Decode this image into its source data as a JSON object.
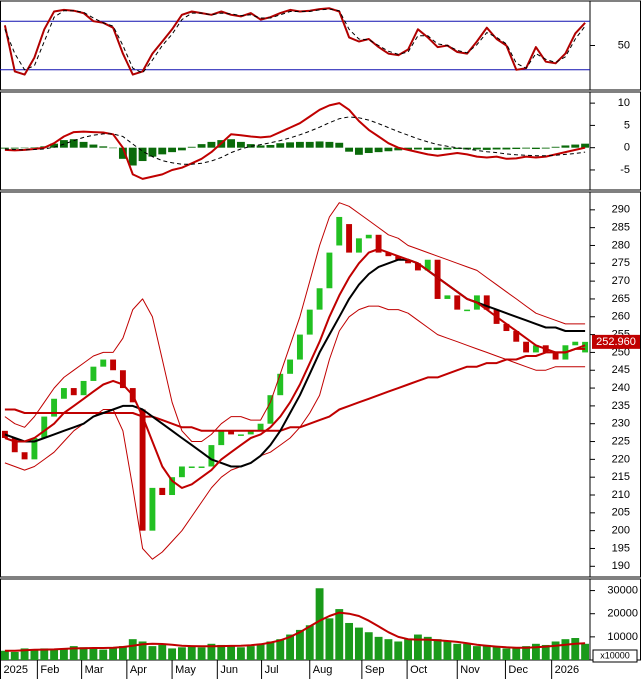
{
  "chart_data": [
    {
      "type": "line",
      "xlim": [
        -0.5,
        59.5
      ],
      "ylim": [
        -5,
        105
      ],
      "yticks": [
        50
      ],
      "levels": [
        20,
        80
      ],
      "level_color": "#1010b0",
      "series": [
        {
          "color": "#b00000",
          "weight": "thick",
          "values": [
            75,
            18,
            14,
            35,
            70,
            92,
            94,
            93,
            90,
            80,
            78,
            72,
            40,
            14,
            18,
            40,
            55,
            70,
            88,
            92,
            90,
            88,
            92,
            88,
            86,
            90,
            82,
            85,
            90,
            94,
            92,
            93,
            95,
            96,
            92,
            60,
            55,
            58,
            48,
            40,
            38,
            45,
            70,
            60,
            48,
            50,
            42,
            40,
            55,
            72,
            58,
            50,
            20,
            22,
            48,
            30,
            28,
            40,
            65,
            78
          ]
        },
        {
          "color": "#000000",
          "dashed": true,
          "weight": "thin",
          "values": [
            70,
            40,
            20,
            25,
            55,
            85,
            93,
            93,
            91,
            84,
            78,
            74,
            50,
            22,
            16,
            32,
            50,
            64,
            82,
            90,
            90,
            88,
            90,
            89,
            87,
            88,
            84,
            84,
            88,
            92,
            92,
            92,
            94,
            95,
            93,
            70,
            58,
            57,
            50,
            43,
            39,
            42,
            62,
            62,
            52,
            50,
            44,
            41,
            51,
            66,
            60,
            52,
            28,
            22,
            40,
            33,
            29,
            36,
            58,
            74
          ]
        }
      ]
    },
    {
      "type": "bar",
      "xlim": [
        -0.5,
        59.5
      ],
      "ylim": [
        -9.5,
        12.5
      ],
      "yticks": [
        10,
        5,
        0,
        -5
      ],
      "bars": {
        "color": "#0a6a0a",
        "values": [
          -0.2,
          -0.2,
          0,
          0.1,
          0.3,
          0.9,
          1.7,
          1.9,
          1.3,
          0.7,
          0.3,
          -0.1,
          -2.5,
          -4,
          -3,
          -2,
          -1.5,
          -1,
          -0.6,
          0.2,
          0.8,
          1.3,
          1.7,
          1.9,
          1.3,
          0.8,
          0.5,
          0.6,
          1,
          1.2,
          1.3,
          1.3,
          1.4,
          1.3,
          1.1,
          -0.9,
          -1.6,
          -1.2,
          -1,
          -0.8,
          -0.6,
          -0.5,
          -0.4,
          -0.5,
          -0.5,
          -0.4,
          -0.3,
          -0.4,
          -0.4,
          -0.5,
          -0.4,
          -0.4,
          -0.3,
          -0.2,
          -0.3,
          -0.2,
          0.2,
          0.5,
          0.7,
          0.9
        ]
      },
      "series": [
        {
          "color": "#c00000",
          "weight": "thick",
          "values": [
            -0.5,
            -0.6,
            -0.5,
            -0.3,
            0,
            1,
            2.5,
            3.5,
            3.6,
            3.5,
            3.4,
            3,
            0,
            -6,
            -7,
            -6.5,
            -6,
            -5,
            -4.5,
            -3.5,
            -2.5,
            -1,
            1,
            3,
            2.8,
            2.5,
            2.3,
            2.5,
            3.5,
            4.5,
            5.5,
            7,
            8.5,
            9.5,
            10,
            8.5,
            6,
            4,
            2.5,
            1,
            0,
            -0.5,
            -1,
            -1.5,
            -1.8,
            -1.5,
            -1.2,
            -1.5,
            -2,
            -2.2,
            -2,
            -2.5,
            -2.4,
            -2,
            -2.2,
            -2,
            -1.5,
            -1,
            -0.5,
            0
          ]
        },
        {
          "color": "#000000",
          "dashed": true,
          "weight": "thin",
          "values": [
            -0.3,
            -0.4,
            -0.5,
            -0.4,
            -0.3,
            0.1,
            0.8,
            1.6,
            2.3,
            2.8,
            3.1,
            3.1,
            2.5,
            0.8,
            -0.8,
            -2,
            -2.9,
            -3.4,
            -3.7,
            -3.7,
            -3.5,
            -3,
            -2.2,
            -1.1,
            -0.3,
            0.3,
            0.7,
            1.1,
            1.6,
            2.2,
            2.9,
            3.7,
            4.6,
            5.6,
            6.5,
            6.9,
            6.7,
            6.2,
            5.4,
            4.5,
            3.6,
            2.8,
            2,
            1.3,
            0.7,
            0.3,
            0,
            -0.3,
            -0.6,
            -0.9,
            -1.1,
            -1.4,
            -1.6,
            -1.7,
            -1.8,
            -1.8,
            -1.7,
            -1.5,
            -1.3,
            -1
          ]
        }
      ]
    },
    {
      "type": "candlestick",
      "xlim": [
        -0.5,
        59.5
      ],
      "ylim": [
        187,
        295
      ],
      "yticks": [
        190,
        195,
        200,
        205,
        210,
        215,
        220,
        225,
        230,
        235,
        240,
        245,
        250,
        255,
        260,
        265,
        270,
        275,
        280,
        285,
        290
      ],
      "up_color": "#22c022",
      "down_color": "#c00000",
      "open": [
        228,
        226,
        222,
        220,
        226,
        232,
        237,
        240,
        238,
        242,
        246,
        248,
        245,
        240,
        234,
        200,
        212,
        210,
        215,
        218,
        218,
        218,
        224,
        228,
        227,
        227,
        228,
        230,
        238,
        244,
        248,
        255,
        262,
        268,
        280,
        286,
        278,
        282,
        283,
        278,
        277,
        276,
        275,
        273,
        276,
        265,
        266,
        262,
        262,
        266,
        262,
        258,
        256,
        253,
        250,
        252,
        250,
        248,
        252,
        250
      ],
      "close": [
        226,
        222,
        220,
        226,
        232,
        237,
        240,
        238,
        242,
        246,
        248,
        245,
        240,
        236,
        200,
        212,
        210,
        215,
        218,
        218,
        218,
        224,
        228,
        227,
        227,
        228,
        230,
        238,
        244,
        248,
        255,
        262,
        268,
        278,
        288,
        278,
        282,
        283,
        278,
        277,
        276,
        275,
        273,
        276,
        265,
        266,
        262,
        262,
        266,
        262,
        258,
        256,
        253,
        250,
        252,
        250,
        248,
        252,
        253,
        252.96
      ],
      "last_label": "252.960",
      "last_color": "#c00000",
      "series": [
        {
          "color": "#c00000",
          "weight": "thin",
          "values": [
            232,
            230,
            229,
            232,
            236,
            240,
            243,
            245,
            247,
            249,
            250,
            250,
            254,
            262,
            265,
            260,
            248,
            236,
            228,
            225,
            225,
            227,
            230,
            232,
            232,
            231,
            231,
            236,
            244,
            252,
            260,
            270,
            280,
            288,
            292,
            291,
            289,
            287,
            285,
            283,
            282,
            280,
            279,
            278,
            277,
            276,
            275,
            274,
            273,
            271,
            269,
            267,
            265,
            263,
            261,
            260,
            259,
            258,
            258,
            258
          ]
        },
        {
          "color": "#c00000",
          "weight": "thin",
          "values": [
            219,
            218,
            217,
            218,
            220,
            222,
            225,
            228,
            230,
            232,
            234,
            234,
            228,
            212,
            195,
            192,
            194,
            197,
            200,
            204,
            208,
            212,
            215,
            217,
            218,
            219,
            221,
            222,
            224,
            226,
            229,
            233,
            238,
            248,
            256,
            260,
            262,
            263,
            263,
            262,
            262,
            261,
            259,
            257,
            255,
            254,
            253,
            252,
            251,
            250,
            249,
            248,
            247,
            246,
            245,
            245,
            246,
            246,
            246,
            246
          ]
        },
        {
          "color": "#c00000",
          "weight": "thick",
          "values": [
            234,
            234,
            233,
            233,
            233,
            233,
            233,
            233,
            233,
            233,
            233,
            233,
            233,
            233,
            232,
            232,
            231,
            230,
            229,
            229,
            228,
            228,
            228,
            228,
            228,
            228,
            228,
            228,
            228,
            229,
            229,
            230,
            231,
            232,
            234,
            235,
            236,
            237,
            238,
            239,
            240,
            241,
            242,
            243,
            243,
            244,
            245,
            246,
            246,
            247,
            247,
            248,
            248,
            249,
            249,
            250,
            250,
            250,
            251,
            251
          ]
        },
        {
          "color": "#000000",
          "weight": "thick",
          "values": [
            227,
            226,
            225,
            225,
            226,
            227,
            228,
            229,
            230,
            232,
            233,
            234,
            235,
            235,
            234,
            232,
            230,
            228,
            226,
            224,
            222,
            220,
            219,
            218,
            218,
            219,
            221,
            224,
            228,
            233,
            238,
            244,
            250,
            255,
            260,
            265,
            269,
            272,
            274,
            275,
            276,
            276,
            275,
            273,
            271,
            269,
            267,
            265,
            264,
            263,
            262,
            261,
            260,
            259,
            258,
            257,
            257,
            256,
            256,
            256
          ]
        },
        {
          "color": "#c00000",
          "weight": "thick",
          "values": [
            226,
            225,
            225,
            226,
            228,
            230,
            233,
            235,
            237,
            239,
            241,
            242,
            241,
            238,
            232,
            225,
            218,
            214,
            212,
            213,
            215,
            217,
            220,
            222,
            224,
            226,
            227,
            229,
            232,
            236,
            241,
            247,
            253,
            260,
            266,
            271,
            275,
            278,
            279,
            278,
            277,
            276,
            275,
            273,
            271,
            269,
            267,
            265,
            264,
            262,
            260,
            258,
            256,
            254,
            252,
            251,
            250,
            250,
            251,
            252
          ]
        }
      ]
    },
    {
      "type": "bar",
      "xlim": [
        -0.5,
        59.5
      ],
      "ylim": [
        0,
        35000
      ],
      "yticks": [
        30000,
        20000,
        10000
      ],
      "unit_label": "x10000",
      "bars": {
        "color": "#1a9a1a",
        "values": [
          4000,
          3500,
          5000,
          4500,
          5000,
          4500,
          5000,
          6000,
          5500,
          5000,
          4500,
          5000,
          6000,
          9000,
          8000,
          6000,
          6500,
          5000,
          5500,
          6000,
          5500,
          7000,
          6500,
          6000,
          5500,
          6000,
          7000,
          8000,
          9000,
          11000,
          13000,
          15000,
          31000,
          18000,
          22000,
          16000,
          14000,
          12000,
          10000,
          9000,
          8000,
          9000,
          11000,
          10000,
          9000,
          8000,
          7000,
          7000,
          6000,
          6500,
          6000,
          5000,
          5500,
          6000,
          7000,
          6500,
          8000,
          9000,
          9500,
          7000
        ]
      },
      "series": [
        {
          "color": "#c00000",
          "weight": "thick",
          "values": [
            4000,
            4000,
            4200,
            4400,
            4500,
            4600,
            4800,
            5000,
            5100,
            5200,
            5200,
            5300,
            5600,
            6200,
            6800,
            7000,
            6900,
            6600,
            6200,
            6000,
            5900,
            5900,
            6000,
            6100,
            6200,
            6400,
            6800,
            7500,
            8500,
            10000,
            12000,
            14500,
            17000,
            19000,
            20500,
            20000,
            19000,
            17000,
            14500,
            12000,
            10000,
            9000,
            8800,
            8800,
            8500,
            8200,
            7800,
            7200,
            6600,
            6200,
            5800,
            5500,
            5300,
            5300,
            5500,
            5800,
            6200,
            6600,
            7000,
            7200
          ]
        }
      ],
      "xticks": [
        {
          "value": -0.5,
          "label": "2025"
        },
        {
          "value": 3.3,
          "label": "Feb"
        },
        {
          "value": 7.8,
          "label": "Mar"
        },
        {
          "value": 12.4,
          "label": "Apr"
        },
        {
          "value": 17,
          "label": "May"
        },
        {
          "value": 21.6,
          "label": "Jun"
        },
        {
          "value": 26.1,
          "label": "Jul"
        },
        {
          "value": 31,
          "label": "Aug"
        },
        {
          "value": 36.3,
          "label": "Sep"
        },
        {
          "value": 40.9,
          "label": "Oct"
        },
        {
          "value": 46,
          "label": "Nov"
        },
        {
          "value": 50.9,
          "label": "Dec"
        },
        {
          "value": 55.6,
          "label": "2026"
        }
      ]
    }
  ]
}
